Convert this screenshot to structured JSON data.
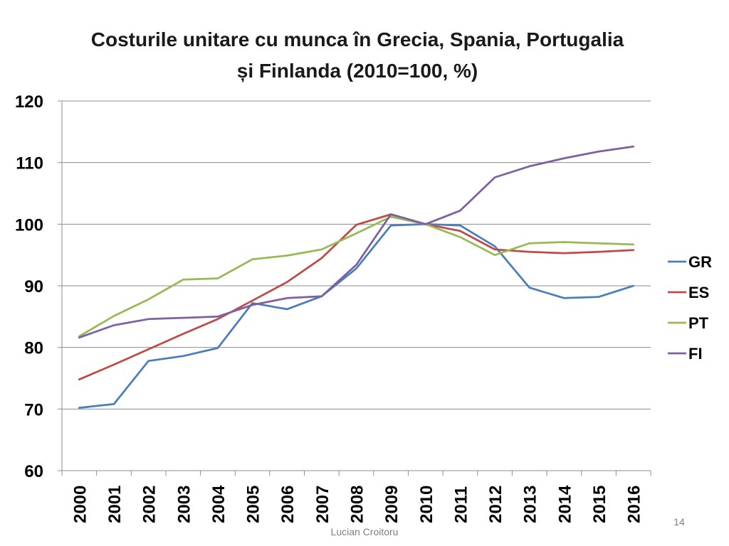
{
  "slide": {
    "author": "Lucian Croitoru",
    "page_number": "14"
  },
  "chart_data": {
    "type": "line",
    "title_line1": "Costurile unitare cu munca în Grecia, Spania, Portugalia",
    "title_line2": "și Finlanda (2010=100, %)",
    "categories": [
      "2000",
      "2001",
      "2002",
      "2003",
      "2004",
      "2005",
      "2006",
      "2007",
      "2008",
      "2009",
      "2010",
      "2011",
      "2012",
      "2013",
      "2014",
      "2015",
      "2016"
    ],
    "ylim": [
      60,
      120
    ],
    "yticks": [
      60,
      70,
      80,
      90,
      100,
      110,
      120
    ],
    "grid": true,
    "legend_position": "right",
    "series": [
      {
        "name": "GR",
        "color": "#4a7ebb",
        "values": [
          70.2,
          70.8,
          77.8,
          78.6,
          79.9,
          87.2,
          86.2,
          88.3,
          92.8,
          99.8,
          100.0,
          99.8,
          96.4,
          89.7,
          88.0,
          88.2,
          90.0
        ]
      },
      {
        "name": "ES",
        "color": "#be4b48",
        "values": [
          74.8,
          77.2,
          79.7,
          82.2,
          84.6,
          87.6,
          90.6,
          94.5,
          99.9,
          101.6,
          100.0,
          98.9,
          95.9,
          95.5,
          95.3,
          95.5,
          95.8
        ]
      },
      {
        "name": "PT",
        "color": "#98b954",
        "values": [
          81.8,
          85.1,
          87.8,
          91.0,
          91.2,
          94.3,
          94.9,
          95.9,
          98.5,
          101.2,
          100.0,
          97.9,
          95.0,
          96.9,
          97.1,
          96.9,
          96.7
        ]
      },
      {
        "name": "FI",
        "color": "#7d60a0",
        "values": [
          81.6,
          83.6,
          84.6,
          84.8,
          85.0,
          86.9,
          88.0,
          88.3,
          93.4,
          101.6,
          100.0,
          102.2,
          107.6,
          109.4,
          110.7,
          111.8,
          112.6
        ]
      }
    ]
  }
}
